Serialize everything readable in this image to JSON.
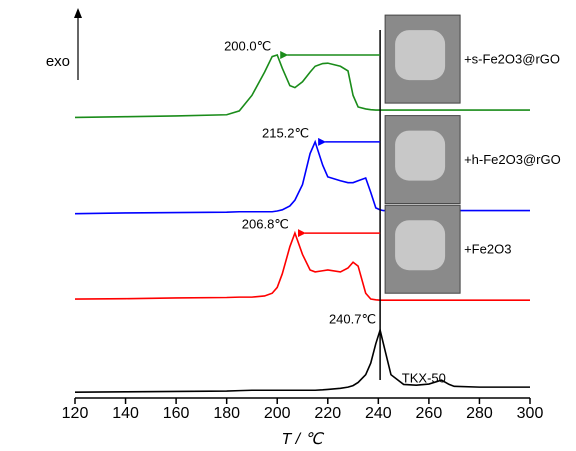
{
  "chart_data": {
    "type": "line",
    "xlabel": "T / ℃",
    "ylabel": "exo",
    "x": [
      120,
      140,
      160,
      180,
      185,
      190,
      195,
      198,
      200,
      202,
      205,
      207,
      210,
      213,
      215,
      218,
      220,
      225,
      228,
      230,
      232,
      235,
      237,
      239,
      240.7,
      242,
      245,
      250,
      255,
      260,
      265,
      268,
      270,
      280,
      300
    ],
    "xlim": [
      120,
      300
    ],
    "xticks": [
      120,
      140,
      160,
      180,
      200,
      220,
      240,
      260,
      280,
      300
    ],
    "ylim": [
      0,
      100
    ],
    "series": [
      {
        "name": "TKX-50",
        "color": "#000000",
        "peak_label": "240.7℃",
        "values": [
          1.5,
          1.6,
          1.7,
          1.8,
          1.9,
          2,
          2,
          2,
          2,
          2,
          2,
          2,
          2,
          2,
          2,
          2.1,
          2.2,
          2.5,
          2.8,
          3.2,
          4,
          6,
          9,
          14,
          17.5,
          14,
          6,
          3.5,
          3.3,
          3.6,
          4.6,
          3.5,
          3,
          2.8,
          2.8
        ]
      },
      {
        "name": "+Fe2O3",
        "color": "#ff0000",
        "peak_label": "206.8℃",
        "values": [
          25.5,
          25.6,
          25.8,
          25.9,
          26,
          26,
          26.3,
          27,
          28.5,
          32,
          39,
          42.5,
          37,
          33,
          32.5,
          32.8,
          33,
          32.5,
          33.5,
          35,
          34,
          27,
          25.5,
          25.3,
          25.2,
          25.2,
          25.2,
          25.2,
          25.2,
          25.2,
          25.2,
          25.2,
          25.2,
          25.2,
          25.2
        ]
      },
      {
        "name": "+h-Fe2O3@rGO",
        "color": "#0000ff",
        "peak_label": "215.2℃",
        "values": [
          47.5,
          47.7,
          47.8,
          47.9,
          48,
          48,
          48,
          48,
          48.2,
          48.5,
          49.5,
          51,
          55,
          63,
          66,
          60,
          57,
          56,
          55.5,
          55.5,
          56,
          56.7,
          53,
          49,
          48.5,
          48.3,
          48.3,
          48.3,
          48.3,
          48.3,
          48.3,
          48.3,
          48.3,
          48.3,
          48.3
        ]
      },
      {
        "name": "+s-Fe2O3@rGO",
        "color": "#1a8c1a",
        "peak_label": "200.0℃",
        "values": [
          72.3,
          72.5,
          72.7,
          73,
          74,
          78,
          84,
          88,
          88.4,
          85,
          80.5,
          80,
          81.5,
          84,
          85.5,
          86.2,
          86.3,
          85.5,
          84.3,
          78,
          75,
          74.5,
          74.3,
          74.2,
          74.2,
          74.2,
          74.2,
          74.2,
          74.2,
          74.2,
          74.2,
          74.2,
          74.2,
          74.2,
          74.2
        ]
      }
    ]
  }
}
